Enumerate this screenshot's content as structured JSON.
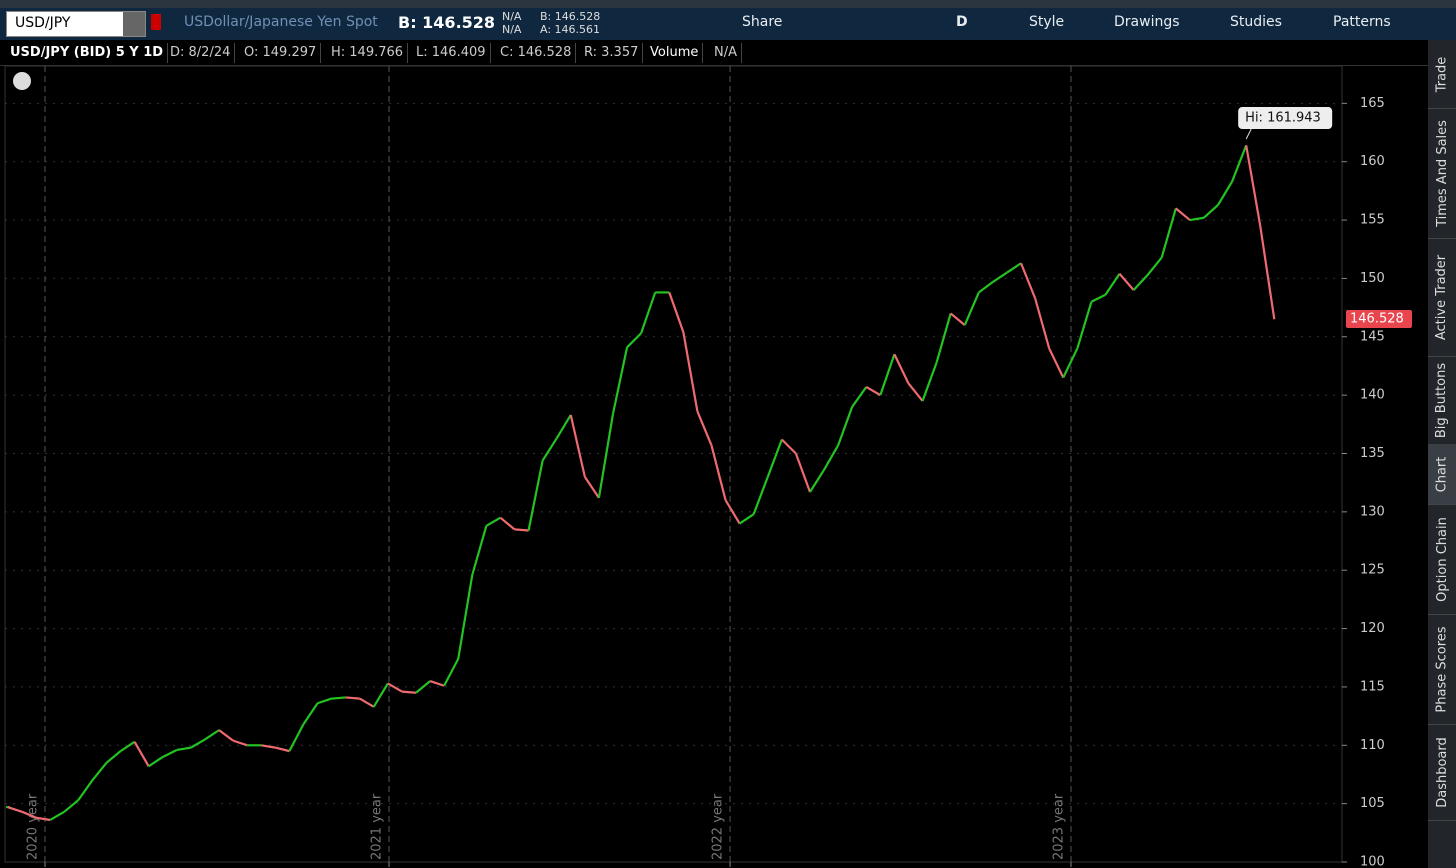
{
  "toolbar": {
    "symbol": "USD/JPY",
    "description": "USDollar/Japanese Yen Spot",
    "bid": "B: 146.528",
    "bid_size": "N/A",
    "ask_size": "N/A",
    "bid_small": "B: 146.528",
    "ask_small": "A: 146.561",
    "share": "Share",
    "aggregation": "D",
    "style": "Style",
    "drawings": "Drawings",
    "studies": "Studies",
    "patterns": "Patterns"
  },
  "info_bar": {
    "title": "USD/JPY (BID) 5 Y 1D",
    "date": "D: 8/2/24",
    "open": "O: 149.297",
    "high": "H: 149.766",
    "low": "L: 146.409",
    "close": "C: 146.528",
    "range": "R: 3.357",
    "volume": "Volume",
    "volume_value": "N/A"
  },
  "side_tabs": [
    "Trade",
    "Times And Sales",
    "Active Trader",
    "Big Buttons",
    "Chart",
    "Option Chain",
    "Phase Scores",
    "Dashboard"
  ],
  "chart_data": {
    "type": "price-line",
    "up_color": "#22c322",
    "down_color": "#ef6a70",
    "grid": true,
    "values": [
      104.7,
      104.3,
      103.8,
      103.6,
      104.3,
      105.3,
      107,
      108.5,
      109.5,
      110.3,
      108.2,
      109,
      109.6,
      109.8,
      110.5,
      111.3,
      110.4,
      110,
      110,
      109.8,
      109.5,
      111.8,
      113.6,
      114,
      114.1,
      114,
      113.3,
      115.3,
      114.6,
      114.5,
      115.5,
      115.1,
      117.4,
      124.6,
      128.8,
      129.5,
      128.5,
      128.4,
      134.4,
      136.3,
      138.3,
      133,
      131.2,
      138.4,
      144.1,
      145.3,
      148.8,
      148.8,
      145.4,
      138.6,
      135.7,
      131,
      129,
      129.8,
      133,
      136.2,
      135,
      131.7,
      133.6,
      135.7,
      139,
      140.7,
      140,
      143.5,
      141,
      139.5,
      142.8,
      147,
      146,
      148.8,
      149.7,
      150.5,
      151.3,
      148.3,
      144,
      141.5,
      144,
      148,
      148.6,
      150.4,
      149,
      150.3,
      151.8,
      156,
      155,
      155.2,
      156.3,
      158.3,
      161.4,
      154.5,
      146.5
    ],
    "xlim": [
      -0.21,
      94.81
    ],
    "xticks": [
      {
        "value": 2.63,
        "label": "2020 year"
      },
      {
        "value": 27.08,
        "label": "2021 year"
      },
      {
        "value": 51.32,
        "label": "2022 year"
      },
      {
        "value": 75.55,
        "label": "2023 year"
      }
    ],
    "ylim": [
      100,
      168.2
    ],
    "yticks": [
      100,
      105,
      110,
      115,
      120,
      125,
      130,
      135,
      140,
      145,
      150,
      155,
      160,
      165
    ],
    "high_label": "Hi: 161.943",
    "high_value": 161.943,
    "last_price": 146.528
  }
}
